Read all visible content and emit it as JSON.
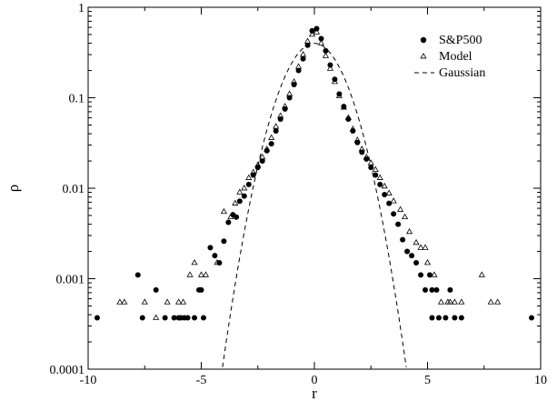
{
  "chart_data": {
    "type": "scatter",
    "title": "",
    "xlabel": "r",
    "ylabel": "ρ",
    "xlim": [
      -10,
      10
    ],
    "ylim": [
      0.0001,
      1
    ],
    "yscale": "log",
    "x_ticks": [
      -10,
      -5,
      0,
      5,
      10
    ],
    "x_tick_labels": [
      "-10",
      "-5",
      "0",
      "5",
      "10"
    ],
    "y_ticks": [
      0.0001,
      0.001,
      0.01,
      0.1,
      1
    ],
    "y_tick_labels": [
      "0.0001",
      "0.001",
      "0.01",
      "0.1",
      "1"
    ],
    "grid": false,
    "legend_position": "top-right",
    "series": [
      {
        "name": "S&P500",
        "marker": "filled-circle",
        "color": "#000000",
        "points": [
          [
            -9.6,
            0.00037
          ],
          [
            -7.8,
            0.0011
          ],
          [
            -7.6,
            0.00037
          ],
          [
            -7.0,
            0.00075
          ],
          [
            -6.6,
            0.00037
          ],
          [
            -6.2,
            0.00037
          ],
          [
            -6.0,
            0.00037
          ],
          [
            -5.9,
            0.00037
          ],
          [
            -5.75,
            0.00037
          ],
          [
            -5.6,
            0.00037
          ],
          [
            -5.3,
            0.00037
          ],
          [
            -5.1,
            0.00075
          ],
          [
            -5.0,
            0.00075
          ],
          [
            -4.9,
            0.00037
          ],
          [
            -4.6,
            0.0022
          ],
          [
            -4.4,
            0.0018
          ],
          [
            -4.2,
            0.0015
          ],
          [
            -4.0,
            0.0026
          ],
          [
            -3.8,
            0.0042
          ],
          [
            -3.6,
            0.0051
          ],
          [
            -3.45,
            0.0048
          ],
          [
            -3.3,
            0.0072
          ],
          [
            -3.1,
            0.0082
          ],
          [
            -2.9,
            0.011
          ],
          [
            -2.7,
            0.014
          ],
          [
            -2.5,
            0.017
          ],
          [
            -2.3,
            0.02
          ],
          [
            -2.1,
            0.026
          ],
          [
            -1.9,
            0.031
          ],
          [
            -1.7,
            0.043
          ],
          [
            -1.5,
            0.058
          ],
          [
            -1.3,
            0.075
          ],
          [
            -1.1,
            0.1
          ],
          [
            -0.9,
            0.14
          ],
          [
            -0.7,
            0.2
          ],
          [
            -0.5,
            0.27
          ],
          [
            -0.3,
            0.38
          ],
          [
            -0.1,
            0.55
          ],
          [
            0.1,
            0.58
          ],
          [
            0.3,
            0.45
          ],
          [
            0.5,
            0.33
          ],
          [
            0.7,
            0.23
          ],
          [
            0.9,
            0.16
          ],
          [
            1.1,
            0.11
          ],
          [
            1.3,
            0.08
          ],
          [
            1.5,
            0.058
          ],
          [
            1.7,
            0.043
          ],
          [
            1.9,
            0.032
          ],
          [
            2.1,
            0.025
          ],
          [
            2.3,
            0.021
          ],
          [
            2.5,
            0.017
          ],
          [
            2.7,
            0.014
          ],
          [
            2.9,
            0.011
          ],
          [
            3.1,
            0.0085
          ],
          [
            3.3,
            0.0068
          ],
          [
            3.5,
            0.0052
          ],
          [
            3.7,
            0.004
          ],
          [
            3.9,
            0.0027
          ],
          [
            4.1,
            0.002
          ],
          [
            4.3,
            0.0018
          ],
          [
            4.5,
            0.0015
          ],
          [
            4.7,
            0.0011
          ],
          [
            4.9,
            0.00075
          ],
          [
            5.1,
            0.0011
          ],
          [
            5.2,
            0.00075
          ],
          [
            5.4,
            0.00075
          ],
          [
            5.2,
            0.00037
          ],
          [
            5.5,
            0.00037
          ],
          [
            5.8,
            0.00037
          ],
          [
            6.0,
            0.00075
          ],
          [
            6.2,
            0.00037
          ],
          [
            6.5,
            0.00037
          ],
          [
            9.6,
            0.00037
          ]
        ]
      },
      {
        "name": "Model",
        "marker": "open-triangle",
        "color": "#000000",
        "points": [
          [
            -8.6,
            0.00055
          ],
          [
            -8.4,
            0.00055
          ],
          [
            -7.5,
            0.00055
          ],
          [
            -7.0,
            0.00037
          ],
          [
            -6.5,
            0.00055
          ],
          [
            -6.0,
            0.00055
          ],
          [
            -5.8,
            0.00055
          ],
          [
            -5.5,
            0.0011
          ],
          [
            -5.3,
            0.0015
          ],
          [
            -5.0,
            0.0011
          ],
          [
            -4.8,
            0.0011
          ],
          [
            -4.3,
            0.0015
          ],
          [
            -4.0,
            0.0055
          ],
          [
            -3.7,
            0.0048
          ],
          [
            -3.5,
            0.0068
          ],
          [
            -3.3,
            0.009
          ],
          [
            -3.1,
            0.01
          ],
          [
            -2.9,
            0.013
          ],
          [
            -2.7,
            0.015
          ],
          [
            -2.5,
            0.018
          ],
          [
            -2.3,
            0.022
          ],
          [
            -2.1,
            0.027
          ],
          [
            -1.9,
            0.036
          ],
          [
            -1.7,
            0.048
          ],
          [
            -1.5,
            0.063
          ],
          [
            -1.3,
            0.08
          ],
          [
            -1.1,
            0.11
          ],
          [
            -0.9,
            0.15
          ],
          [
            -0.7,
            0.22
          ],
          [
            -0.5,
            0.3
          ],
          [
            -0.3,
            0.42
          ],
          [
            -0.1,
            0.5
          ],
          [
            0.1,
            0.53
          ],
          [
            0.3,
            0.4
          ],
          [
            0.5,
            0.29
          ],
          [
            0.7,
            0.21
          ],
          [
            0.9,
            0.15
          ],
          [
            1.1,
            0.105
          ],
          [
            1.3,
            0.078
          ],
          [
            1.5,
            0.06
          ],
          [
            1.7,
            0.045
          ],
          [
            1.9,
            0.034
          ],
          [
            2.1,
            0.027
          ],
          [
            2.3,
            0.022
          ],
          [
            2.5,
            0.019
          ],
          [
            2.7,
            0.016
          ],
          [
            2.9,
            0.013
          ],
          [
            3.1,
            0.0105
          ],
          [
            3.3,
            0.0088
          ],
          [
            3.5,
            0.0072
          ],
          [
            3.8,
            0.0058
          ],
          [
            4.0,
            0.0048
          ],
          [
            4.2,
            0.0033
          ],
          [
            4.5,
            0.0025
          ],
          [
            4.7,
            0.0022
          ],
          [
            4.9,
            0.0022
          ],
          [
            5.0,
            0.0015
          ],
          [
            5.3,
            0.0011
          ],
          [
            5.6,
            0.00055
          ],
          [
            5.9,
            0.00055
          ],
          [
            6.0,
            0.00055
          ],
          [
            6.2,
            0.00055
          ],
          [
            6.5,
            0.00055
          ],
          [
            7.4,
            0.0011
          ],
          [
            7.8,
            0.00055
          ],
          [
            8.1,
            0.00055
          ]
        ]
      },
      {
        "name": "Gaussian",
        "type": "line",
        "line_style": "dashed",
        "color": "#000000",
        "mean": 0,
        "std": 1
      }
    ]
  }
}
